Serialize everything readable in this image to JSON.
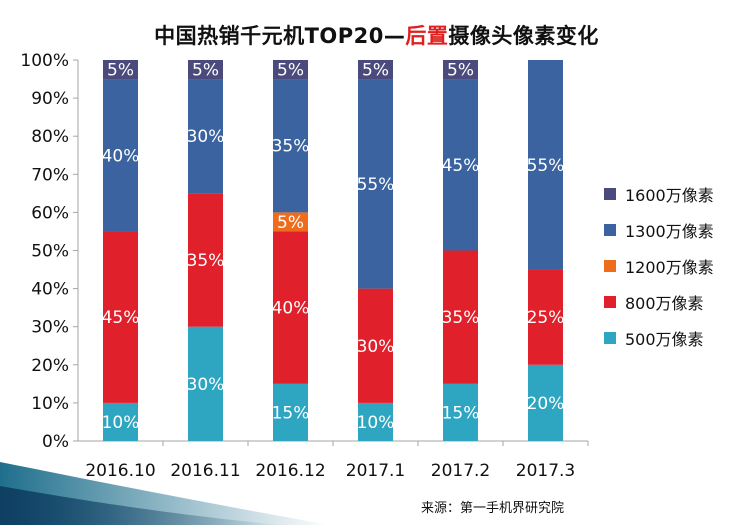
{
  "title": {
    "part1": "中国热销千元机TOP20—",
    "part2": "后置",
    "part3": "摄像头像素变化"
  },
  "source": "来源：第一手机界研究院",
  "chart_data": {
    "type": "bar",
    "stacked": true,
    "title": "中国热销千元机TOP20—后置摄像头像素变化",
    "categories": [
      "2016.10",
      "2016.11",
      "2016.12",
      "2017.1",
      "2017.2",
      "2017.3"
    ],
    "ylim": [
      0,
      100
    ],
    "yticks": [
      "0%",
      "10%",
      "20%",
      "30%",
      "40%",
      "50%",
      "60%",
      "70%",
      "80%",
      "90%",
      "100%"
    ],
    "legend_position": "right",
    "series": [
      {
        "name": "500万像素",
        "color": "#2ea6c2",
        "values": [
          10,
          30,
          15,
          10,
          15,
          20
        ]
      },
      {
        "name": "800万像素",
        "color": "#e0202b",
        "values": [
          45,
          35,
          40,
          30,
          35,
          25
        ]
      },
      {
        "name": "1200万像素",
        "color": "#ef6c1d",
        "values": [
          0,
          0,
          5,
          0,
          0,
          0
        ]
      },
      {
        "name": "1300万像素",
        "color": "#3a63a0",
        "values": [
          40,
          30,
          35,
          55,
          45,
          55
        ]
      },
      {
        "name": "1600万像素",
        "color": "#4a4a7c",
        "values": [
          5,
          5,
          5,
          5,
          5,
          0
        ]
      }
    ]
  }
}
